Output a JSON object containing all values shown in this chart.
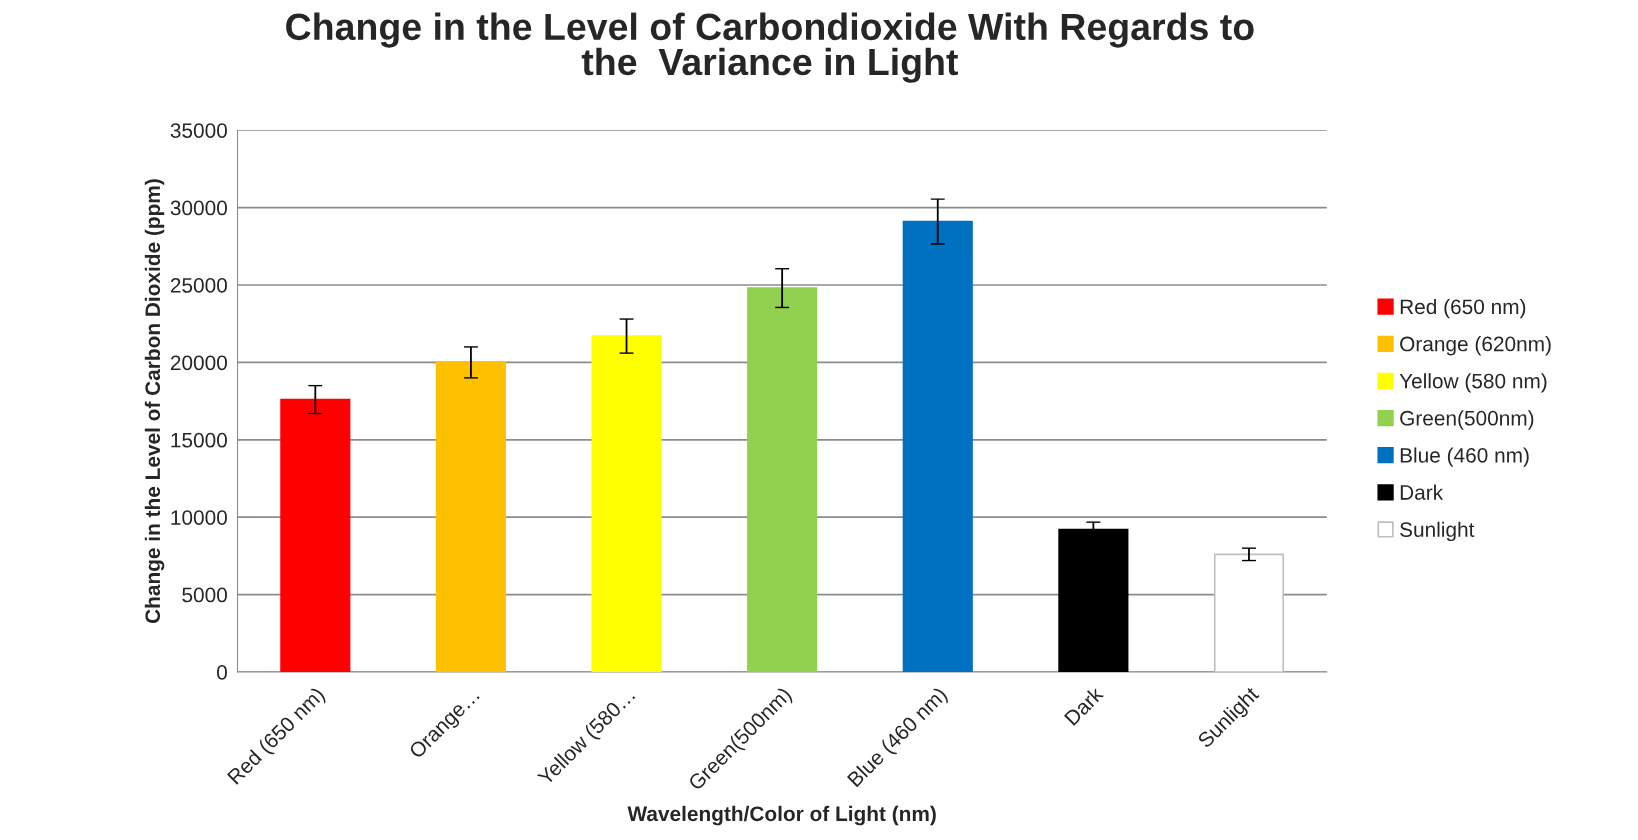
{
  "chart_data": {
    "type": "bar",
    "title": "Change in the Level of Carbondioxide With Regards to\nthe  Variance in Light",
    "xlabel": "Wavelength/Color of Light (nm)",
    "ylabel": "Change in the Level of Carbon Dioxide (ppm)",
    "categories": [
      "Red (650 nm)",
      "Orange…",
      "Yellow (580…",
      "Green(500nm)",
      "Blue (460 nm)",
      "Dark",
      "Sunlight"
    ],
    "series": [
      {
        "name": "Red (650 nm)",
        "color": "#ff0000",
        "values": [
          17600,
          null,
          null,
          null,
          null,
          null,
          null
        ],
        "errors": [
          900,
          null,
          null,
          null,
          null,
          null,
          null
        ]
      },
      {
        "name": "Orange (620nm)",
        "color": "#ffc000",
        "values": [
          null,
          20000,
          null,
          null,
          null,
          null,
          null
        ],
        "errors": [
          null,
          1000,
          null,
          null,
          null,
          null,
          null
        ]
      },
      {
        "name": "Yellow (580 nm)",
        "color": "#ffff00",
        "values": [
          null,
          null,
          21700,
          null,
          null,
          null,
          null
        ],
        "errors": [
          null,
          null,
          1100,
          null,
          null,
          null,
          null
        ]
      },
      {
        "name": "Green(500nm)",
        "color": "#92d050",
        "values": [
          null,
          null,
          null,
          24800,
          null,
          null,
          null
        ],
        "errors": [
          null,
          null,
          null,
          1250,
          null,
          null,
          null
        ]
      },
      {
        "name": "Blue (460 nm)",
        "color": "#0070c0",
        "values": [
          null,
          null,
          null,
          null,
          29100,
          null,
          null
        ],
        "errors": [
          null,
          null,
          null,
          null,
          1450,
          null,
          null
        ]
      },
      {
        "name": "Dark",
        "color": "#000000",
        "values": [
          null,
          null,
          null,
          null,
          null,
          9200,
          null
        ],
        "errors": [
          null,
          null,
          null,
          null,
          null,
          480,
          null
        ]
      },
      {
        "name": "Sunlight",
        "color": "#ffffff",
        "values": [
          null,
          null,
          null,
          null,
          null,
          null,
          7600
        ],
        "errors": [
          null,
          null,
          null,
          null,
          null,
          null,
          400
        ]
      }
    ],
    "ylim": [
      0,
      35000
    ],
    "yticks": [
      0,
      5000,
      10000,
      15000,
      20000,
      25000,
      30000,
      35000
    ],
    "grid": "y",
    "legend": "right"
  }
}
